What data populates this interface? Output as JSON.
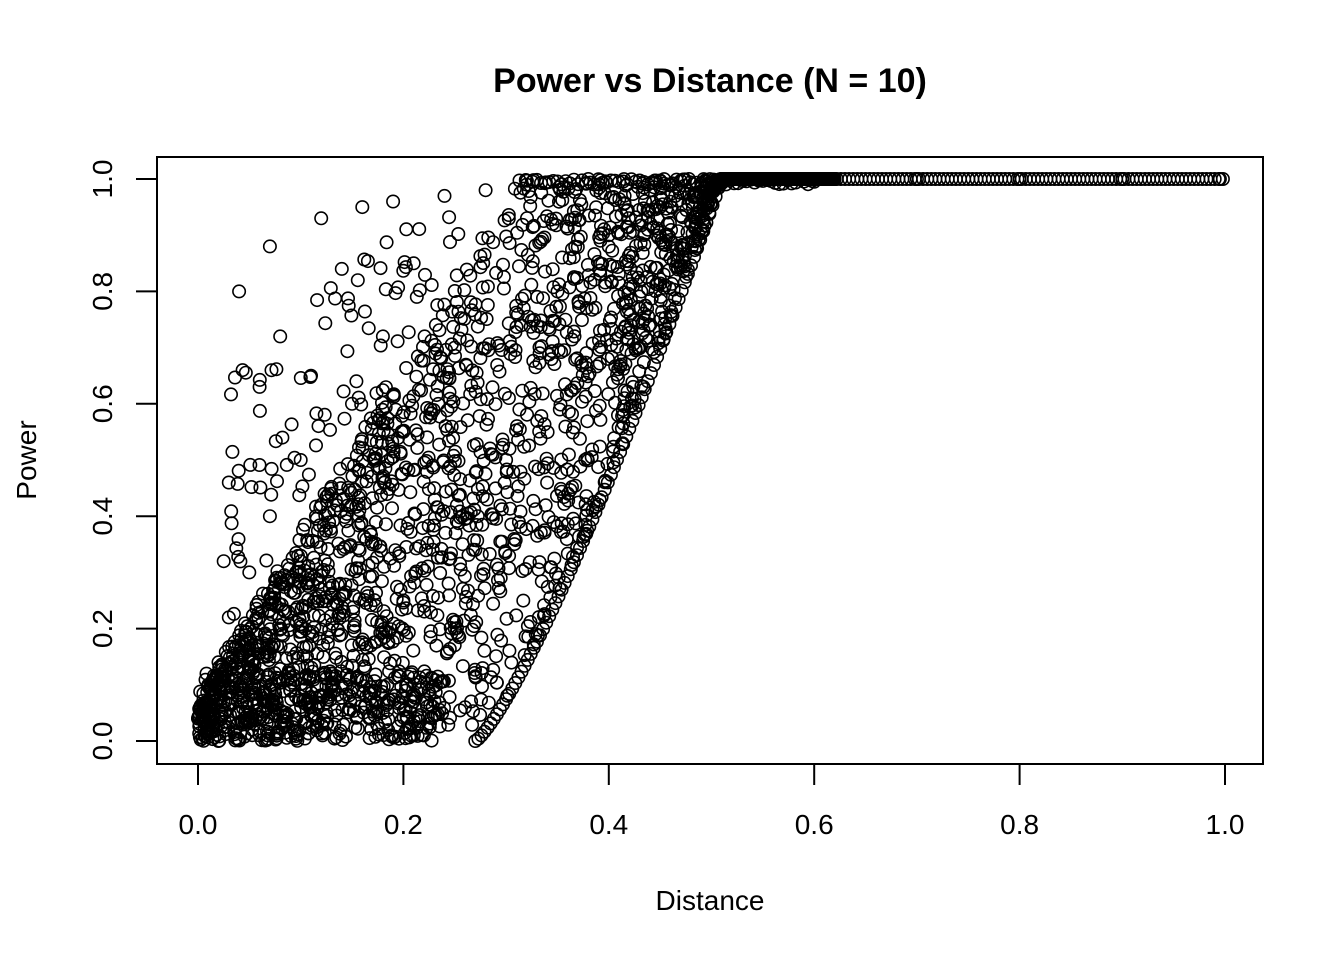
{
  "chart_data": {
    "type": "scatter",
    "title": "Power vs Distance (N = 10)",
    "xlabel": "Distance",
    "ylabel": "Power",
    "xlim": [
      0,
      1
    ],
    "ylim": [
      0,
      1
    ],
    "xticks": [
      "0.0",
      "0.2",
      "0.4",
      "0.6",
      "0.8",
      "1.0"
    ],
    "yticks": [
      "0.0",
      "0.2",
      "0.4",
      "0.6",
      "0.8",
      "1.0"
    ],
    "grid": false,
    "legend": "none",
    "marker": "open-circle",
    "marker_color": "#000000",
    "series": [
      {
        "values": [
          [
            0.0,
            0.04
          ],
          [
            0.005,
            0.06
          ],
          [
            0.01,
            0.02
          ],
          [
            0.01,
            0.1
          ],
          [
            0.02,
            0.0
          ],
          [
            0.02,
            0.14
          ],
          [
            0.025,
            0.32
          ],
          [
            0.03,
            0.22
          ],
          [
            0.03,
            0.46
          ],
          [
            0.04,
            0.8
          ],
          [
            0.04,
            0.05
          ],
          [
            0.05,
            0.3
          ],
          [
            0.05,
            0.15
          ],
          [
            0.06,
            0.63
          ],
          [
            0.06,
            0.01
          ],
          [
            0.07,
            0.88
          ],
          [
            0.07,
            0.4
          ],
          [
            0.08,
            0.2
          ],
          [
            0.08,
            0.72
          ],
          [
            0.09,
            0.1
          ],
          [
            0.1,
            0.5
          ],
          [
            0.1,
            0.32
          ],
          [
            0.11,
            0.65
          ],
          [
            0.12,
            0.93
          ],
          [
            0.12,
            0.27
          ],
          [
            0.13,
            0.12
          ],
          [
            0.14,
            0.84
          ],
          [
            0.15,
            0.42
          ],
          [
            0.15,
            0.6
          ],
          [
            0.16,
            0.95
          ],
          [
            0.17,
            0.35
          ],
          [
            0.18,
            0.05
          ],
          [
            0.18,
            0.72
          ],
          [
            0.19,
            0.96
          ],
          [
            0.2,
            0.25
          ],
          [
            0.2,
            0.55
          ],
          [
            0.21,
            0.85
          ],
          [
            0.22,
            0.01
          ],
          [
            0.23,
            0.45
          ],
          [
            0.24,
            0.97
          ],
          [
            0.25,
            0.2
          ],
          [
            0.25,
            0.7
          ],
          [
            0.26,
            0.06
          ],
          [
            0.27,
            0.34
          ],
          [
            0.28,
            0.98
          ],
          [
            0.3,
            0.5
          ],
          [
            0.32,
            0.99
          ],
          [
            0.35,
            0.8
          ],
          [
            0.38,
            1.0
          ],
          [
            0.4,
            0.9
          ],
          [
            0.45,
            0.95
          ],
          [
            0.5,
            0.98
          ],
          [
            0.6,
            0.995
          ],
          [
            0.7,
            1.0
          ],
          [
            0.8,
            1.0
          ],
          [
            0.9,
            1.0
          ],
          [
            0.995,
            1.0
          ]
        ]
      }
    ]
  }
}
